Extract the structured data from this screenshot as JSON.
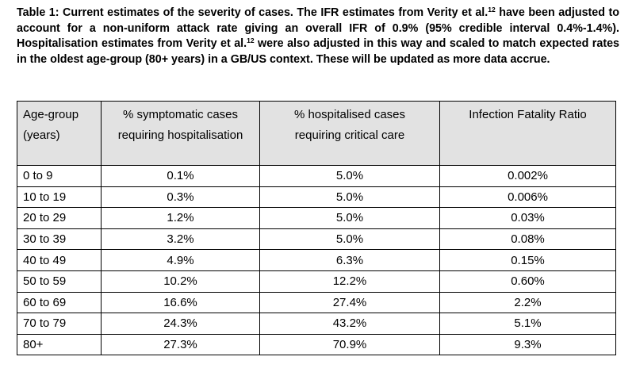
{
  "caption": {
    "part1": "Table 1: Current estimates of the severity of cases. The IFR estimates from Verity et al.",
    "ref1": "12",
    "part2": " have been adjusted to account for a non-uniform attack rate giving an overall IFR of 0.9% (95% credible interval 0.4%-1.4%). Hospitalisation estimates from Verity et al.",
    "ref2": "12",
    "part3": " were also adjusted in this way and scaled to match expected rates in the oldest age-group (80+ years) in a GB/US context. These will be updated as more data accrue."
  },
  "table": {
    "headers": [
      {
        "line1": "Age-group",
        "line2": "(years)"
      },
      {
        "line1": "% symptomatic cases",
        "line2": "requiring hospitalisation"
      },
      {
        "line1": "% hospitalised cases",
        "line2": "requiring critical care"
      },
      {
        "line1": "Infection Fatality Ratio",
        "line2": ""
      }
    ],
    "rows": [
      [
        "0 to 9",
        "0.1%",
        "5.0%",
        "0.002%"
      ],
      [
        "10 to 19",
        "0.3%",
        "5.0%",
        "0.006%"
      ],
      [
        "20 to 29",
        "1.2%",
        "5.0%",
        "0.03%"
      ],
      [
        "30 to 39",
        "3.2%",
        "5.0%",
        "0.08%"
      ],
      [
        "40 to 49",
        "4.9%",
        "6.3%",
        "0.15%"
      ],
      [
        "50 to 59",
        "10.2%",
        "12.2%",
        "0.60%"
      ],
      [
        "60 to 69",
        "16.6%",
        "27.4%",
        "2.2%"
      ],
      [
        "70 to 79",
        "24.3%",
        "43.2%",
        "5.1%"
      ],
      [
        "80+",
        "27.3%",
        "70.9%",
        "9.3%"
      ]
    ]
  }
}
